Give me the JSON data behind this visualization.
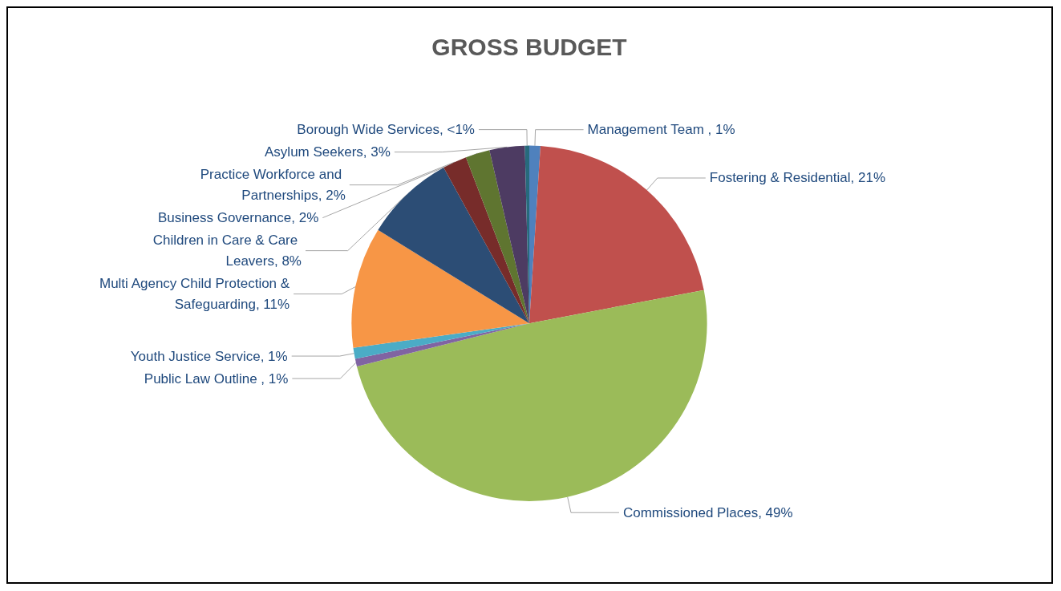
{
  "chart_data": {
    "type": "pie",
    "title": "GROSS BUDGET",
    "categories": [
      "Management Team ",
      "Fostering & Residential",
      "Commissioned Places",
      "Public Law Outline ",
      "Youth Justice Service",
      "Multi Agency Child Protection & Safeguarding",
      "Children in Care & Care Leavers",
      "Practice Workforce and Partnerships",
      "Business Governance",
      "Asylum Seekers",
      "Borough Wide Services"
    ],
    "values": [
      1,
      21,
      49.1,
      0.7,
      1,
      11,
      8.2,
      2.2,
      2.2,
      3.2,
      0.4
    ],
    "value_labels": [
      "1%",
      "21%",
      "49%",
      "1%",
      "1%",
      "11%",
      "8%",
      "2%",
      "2%",
      "3%",
      "<1%"
    ],
    "colors": [
      "#4f81bd",
      "#c0504d",
      "#9bbb59",
      "#8064a2",
      "#4bacc6",
      "#f79646",
      "#2c4d75",
      "#772c2a",
      "#5f7530",
      "#4d3b62",
      "#276a7c"
    ],
    "legend": false
  }
}
